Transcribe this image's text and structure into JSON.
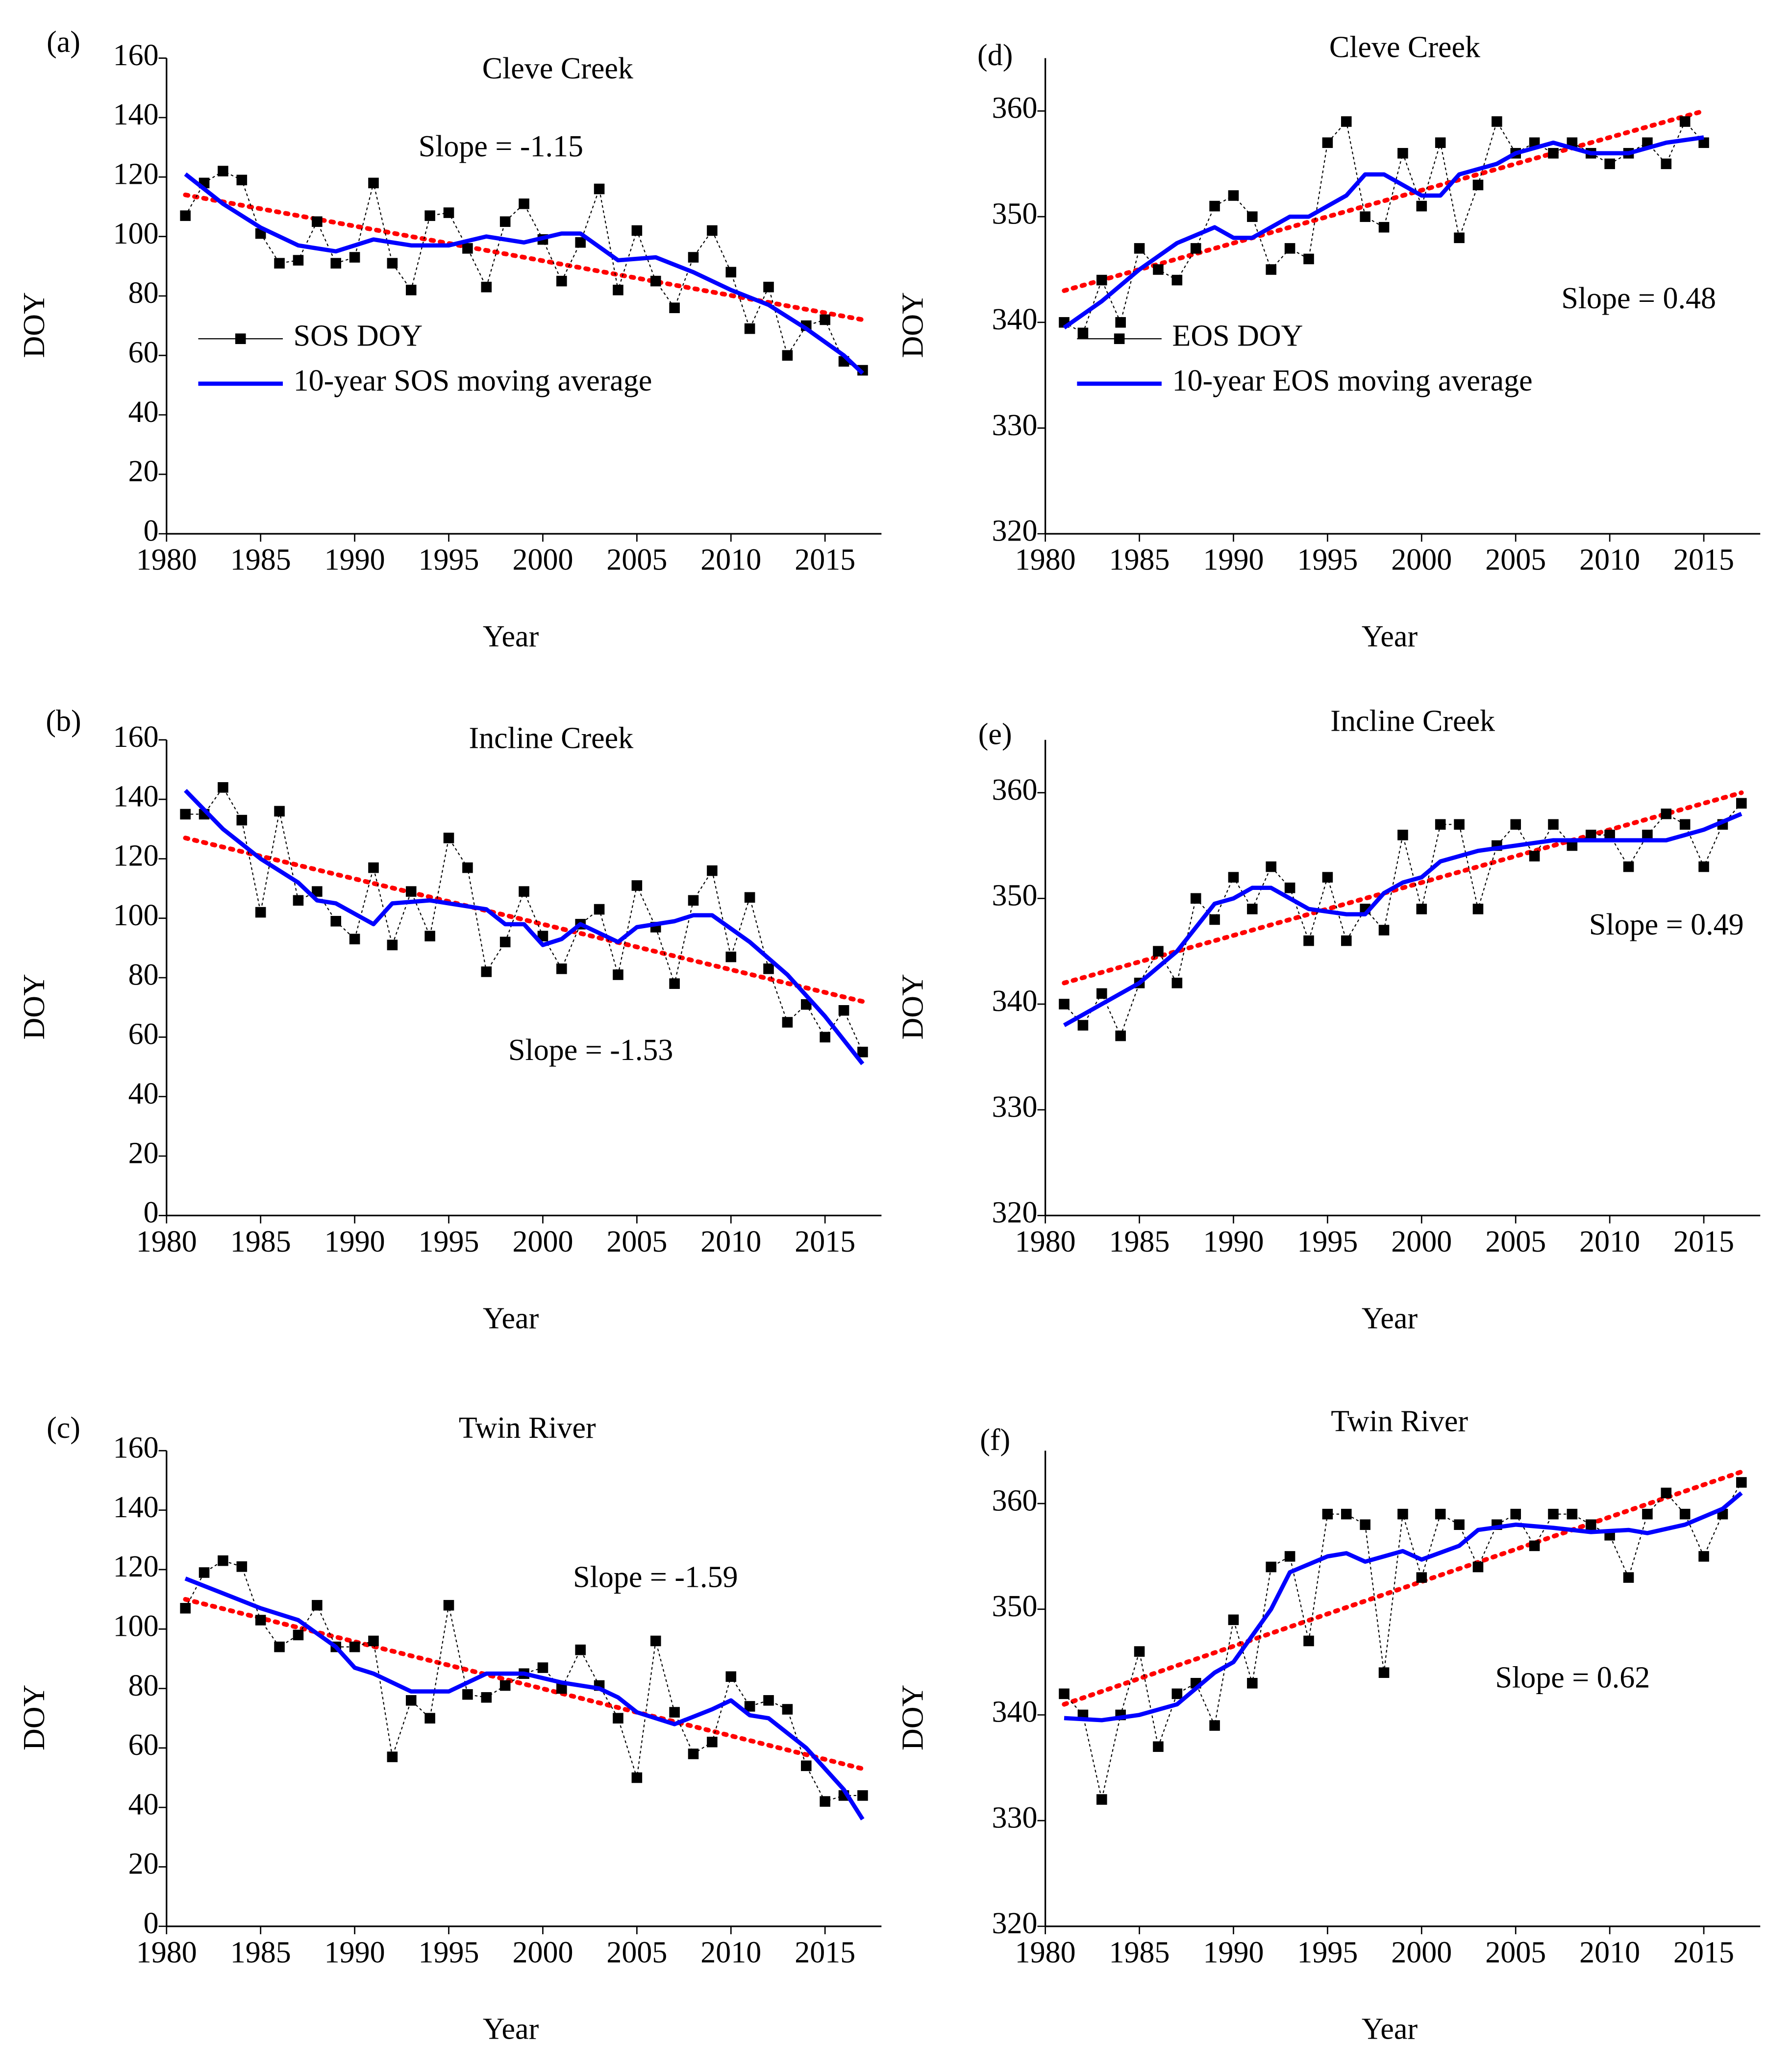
{
  "chart_data": [
    {
      "type": "line",
      "label": "(a)",
      "title": "Cleve Creek",
      "slope_label": "Slope = -1.15",
      "xlabel": "Year",
      "ylabel": "DOY",
      "xlim": [
        1980,
        2018
      ],
      "xticks": [
        1980,
        1985,
        1990,
        1995,
        2000,
        2005,
        2010,
        2015
      ],
      "ylim": [
        0,
        160
      ],
      "yticks": [
        0,
        20,
        40,
        60,
        80,
        100,
        120,
        140,
        160
      ],
      "legend": "left",
      "series": [
        {
          "name": "SOS DOY",
          "color": "#000000",
          "x": [
            1981,
            1982,
            1983,
            1984,
            1985,
            1986,
            1987,
            1988,
            1989,
            1990,
            1991,
            1992,
            1993,
            1994,
            1995,
            1996,
            1997,
            1998,
            1999,
            2000,
            2001,
            2002,
            2003,
            2004,
            2005,
            2006,
            2007,
            2008,
            2009,
            2010,
            2011,
            2012,
            2013,
            2014,
            2015,
            2016,
            2017
          ],
          "values": [
            107,
            118,
            122,
            119,
            101,
            91,
            92,
            105,
            91,
            93,
            118,
            91,
            82,
            107,
            108,
            96,
            83,
            105,
            111,
            99,
            85,
            98,
            116,
            82,
            102,
            85,
            76,
            93,
            102,
            88,
            69,
            83,
            60,
            70,
            72,
            58,
            55
          ]
        },
        {
          "name": "10-year SOS moving average",
          "color": "#0000ff",
          "x": [
            1981,
            1983,
            1985,
            1987,
            1989,
            1991,
            1993,
            1995,
            1997,
            1999,
            2001,
            2002,
            2004,
            2006,
            2008,
            2010,
            2012,
            2014,
            2016,
            2017
          ],
          "values": [
            121,
            111,
            103,
            97,
            95,
            99,
            97,
            97,
            100,
            98,
            101,
            101,
            92,
            93,
            88,
            82,
            77,
            69,
            60,
            54
          ]
        }
      ],
      "trend": {
        "color": "#ff0000",
        "x": [
          1981,
          2017
        ],
        "values": [
          114,
          72
        ]
      }
    },
    {
      "type": "line",
      "label": "(b)",
      "title": "Incline Creek",
      "slope_label": "Slope = -1.53",
      "xlabel": "Year",
      "ylabel": "DOY",
      "xlim": [
        1980,
        2018
      ],
      "xticks": [
        1980,
        1985,
        1990,
        1995,
        2000,
        2005,
        2010,
        2015
      ],
      "ylim": [
        0,
        160
      ],
      "yticks": [
        0,
        20,
        40,
        60,
        80,
        100,
        120,
        140,
        160
      ],
      "series": [
        {
          "color": "#000000",
          "x": [
            1981,
            1982,
            1983,
            1984,
            1985,
            1986,
            1987,
            1988,
            1989,
            1990,
            1991,
            1992,
            1993,
            1994,
            1995,
            1996,
            1997,
            1998,
            1999,
            2000,
            2001,
            2002,
            2003,
            2004,
            2005,
            2006,
            2007,
            2008,
            2009,
            2010,
            2011,
            2012,
            2013,
            2014,
            2015,
            2016,
            2017
          ],
          "values": [
            135,
            135,
            144,
            133,
            102,
            136,
            106,
            109,
            99,
            93,
            117,
            91,
            109,
            94,
            127,
            117,
            82,
            92,
            109,
            94,
            83,
            98,
            103,
            81,
            111,
            97,
            78,
            106,
            116,
            87,
            107,
            83,
            65,
            71,
            60,
            69,
            55
          ]
        },
        {
          "color": "#0000ff",
          "x": [
            1981,
            1983,
            1985,
            1987,
            1988,
            1989,
            1991,
            1992,
            1994,
            1996,
            1997,
            1998,
            1999,
            2000,
            2001,
            2002,
            2004,
            2005,
            2007,
            2008,
            2009,
            2011,
            2013,
            2015,
            2017
          ],
          "values": [
            143,
            130,
            120,
            112,
            106,
            105,
            98,
            105,
            106,
            104,
            103,
            98,
            98,
            91,
            93,
            98,
            92,
            97,
            99,
            101,
            101,
            92,
            81,
            67,
            51
          ]
        }
      ],
      "trend": {
        "color": "#ff0000",
        "x": [
          1981,
          2017
        ],
        "values": [
          127,
          72
        ]
      }
    },
    {
      "type": "line",
      "label": "(c)",
      "title": "Twin River",
      "slope_label": "Slope = -1.59",
      "xlabel": "Year",
      "ylabel": "DOY",
      "xlim": [
        1980,
        2018
      ],
      "xticks": [
        1980,
        1985,
        1990,
        1995,
        2000,
        2005,
        2010,
        2015
      ],
      "ylim": [
        0,
        160
      ],
      "yticks": [
        0,
        20,
        40,
        60,
        80,
        100,
        120,
        140,
        160
      ],
      "series": [
        {
          "color": "#000000",
          "x": [
            1981,
            1982,
            1983,
            1984,
            1985,
            1986,
            1987,
            1988,
            1989,
            1990,
            1991,
            1992,
            1993,
            1994,
            1995,
            1996,
            1997,
            1998,
            1999,
            2000,
            2001,
            2002,
            2003,
            2004,
            2005,
            2006,
            2007,
            2008,
            2009,
            2010,
            2011,
            2012,
            2013,
            2014,
            2015,
            2016,
            2017
          ],
          "values": [
            107,
            119,
            123,
            121,
            103,
            94,
            98,
            108,
            94,
            94,
            96,
            57,
            76,
            70,
            108,
            78,
            77,
            81,
            85,
            87,
            80,
            93,
            81,
            70,
            50,
            96,
            72,
            58,
            62,
            84,
            74,
            76,
            73,
            54,
            42,
            44,
            44
          ]
        },
        {
          "color": "#0000ff",
          "x": [
            1981,
            1983,
            1985,
            1987,
            1989,
            1990,
            1991,
            1993,
            1995,
            1997,
            1999,
            2001,
            2003,
            2004,
            2005,
            2007,
            2009,
            2010,
            2011,
            2012,
            2014,
            2016,
            2017
          ],
          "values": [
            117,
            112,
            107,
            103,
            94,
            87,
            85,
            79,
            79,
            85,
            85,
            82,
            80,
            77,
            72,
            68,
            73,
            76,
            71,
            70,
            60,
            46,
            36
          ]
        }
      ],
      "trend": {
        "color": "#ff0000",
        "x": [
          1981,
          2017
        ],
        "values": [
          110,
          53
        ]
      }
    },
    {
      "type": "line",
      "label": "(d)",
      "title": "Cleve Creek",
      "slope_label": "Slope = 0.48",
      "xlabel": "Year",
      "ylabel": "DOY",
      "xlim": [
        1980,
        2018
      ],
      "xticks": [
        1980,
        1985,
        1990,
        1995,
        2000,
        2005,
        2010,
        2015
      ],
      "ylim": [
        320,
        365
      ],
      "yticks": [
        320,
        330,
        340,
        350,
        360
      ],
      "legend": "left",
      "series": [
        {
          "name": "EOS DOY",
          "color": "#000000",
          "x": [
            1981,
            1982,
            1983,
            1984,
            1985,
            1986,
            1987,
            1988,
            1989,
            1990,
            1991,
            1992,
            1993,
            1994,
            1995,
            1996,
            1997,
            1998,
            1999,
            2000,
            2001,
            2002,
            2003,
            2004,
            2005,
            2006,
            2007,
            2008,
            2009,
            2010,
            2011,
            2012,
            2013,
            2014,
            2015
          ],
          "values": [
            340,
            339,
            344,
            340,
            347,
            345,
            344,
            347,
            351,
            352,
            350,
            345,
            347,
            346,
            357,
            359,
            350,
            349,
            356,
            351,
            357,
            348,
            353,
            359,
            356,
            357,
            356,
            357,
            356,
            355,
            356,
            357,
            355,
            359,
            357
          ]
        },
        {
          "name": "10-year EOS moving average",
          "color": "#0000ff",
          "x": [
            1981,
            1983,
            1985,
            1987,
            1989,
            1990,
            1991,
            1993,
            1994,
            1996,
            1997,
            1998,
            2000,
            2001,
            2002,
            2004,
            2005,
            2007,
            2009,
            2011,
            2013,
            2015
          ],
          "values": [
            339.5,
            342,
            345,
            347.5,
            349,
            348,
            348,
            350,
            350,
            352,
            354,
            354,
            352,
            352,
            354,
            355,
            356,
            357,
            356,
            356,
            357,
            357.5
          ]
        }
      ],
      "trend": {
        "color": "#ff0000",
        "x": [
          1981,
          2015
        ],
        "values": [
          343,
          360
        ]
      }
    },
    {
      "type": "line",
      "label": "(e)",
      "title": "Incline Creek",
      "slope_label": "Slope = 0.49",
      "xlabel": "Year",
      "ylabel": "DOY",
      "xlim": [
        1980,
        2018
      ],
      "xticks": [
        1980,
        1985,
        1990,
        1995,
        2000,
        2005,
        2010,
        2015
      ],
      "ylim": [
        320,
        365
      ],
      "yticks": [
        320,
        330,
        340,
        350,
        360
      ],
      "series": [
        {
          "color": "#000000",
          "x": [
            1981,
            1982,
            1983,
            1984,
            1985,
            1986,
            1987,
            1988,
            1989,
            1990,
            1991,
            1992,
            1993,
            1994,
            1995,
            1996,
            1997,
            1998,
            1999,
            2000,
            2001,
            2002,
            2003,
            2004,
            2005,
            2006,
            2007,
            2008,
            2009,
            2010,
            2011,
            2012,
            2013,
            2014,
            2015,
            2016,
            2017
          ],
          "values": [
            340,
            338,
            341,
            337,
            342,
            345,
            342,
            350,
            348,
            352,
            349,
            353,
            351,
            346,
            352,
            346,
            349,
            347,
            356,
            349,
            357,
            357,
            349,
            355,
            357,
            354,
            357,
            355,
            356,
            356,
            353,
            356,
            358,
            357,
            353,
            357,
            359
          ]
        },
        {
          "color": "#0000ff",
          "x": [
            1981,
            1983,
            1985,
            1987,
            1989,
            1990,
            1991,
            1992,
            1993,
            1994,
            1996,
            1997,
            1998,
            1999,
            2000,
            2001,
            2003,
            2005,
            2007,
            2009,
            2011,
            2013,
            2015,
            2017
          ],
          "values": [
            338,
            340,
            342,
            345,
            349.5,
            350,
            351,
            351,
            350,
            349,
            348.5,
            348.5,
            350.5,
            351.5,
            352,
            353.5,
            354.5,
            355,
            355.5,
            355.5,
            355.5,
            355.5,
            356.5,
            358
          ]
        }
      ],
      "trend": {
        "color": "#ff0000",
        "x": [
          1981,
          2017
        ],
        "values": [
          342,
          360
        ]
      }
    },
    {
      "type": "line",
      "label": "(f)",
      "title": "Twin River",
      "slope_label": "Slope = 0.62",
      "xlabel": "Year",
      "ylabel": "DOY",
      "xlim": [
        1980,
        2018
      ],
      "xticks": [
        1980,
        1985,
        1990,
        1995,
        2000,
        2005,
        2010,
        2015
      ],
      "ylim": [
        320,
        365
      ],
      "yticks": [
        320,
        330,
        340,
        350,
        360
      ],
      "series": [
        {
          "color": "#000000",
          "x": [
            1981,
            1982,
            1983,
            1984,
            1985,
            1986,
            1987,
            1988,
            1989,
            1990,
            1991,
            1992,
            1993,
            1994,
            1995,
            1996,
            1997,
            1998,
            1999,
            2000,
            2001,
            2002,
            2003,
            2004,
            2005,
            2006,
            2007,
            2008,
            2009,
            2010,
            2011,
            2012,
            2013,
            2014,
            2015,
            2016,
            2017
          ],
          "values": [
            342,
            340,
            332,
            340,
            346,
            337,
            342,
            343,
            339,
            349,
            343,
            354,
            355,
            347,
            359,
            359,
            358,
            344,
            359,
            353,
            359,
            358,
            354,
            358,
            359,
            356,
            359,
            359,
            358,
            357,
            353,
            359,
            361,
            359,
            355,
            359,
            362
          ]
        },
        {
          "color": "#0000ff",
          "x": [
            1981,
            1983,
            1985,
            1987,
            1989,
            1990,
            1992,
            1993,
            1995,
            1996,
            1997,
            1998,
            1999,
            2000,
            2002,
            2003,
            2005,
            2007,
            2009,
            2011,
            2012,
            2014,
            2016,
            2017
          ],
          "values": [
            339.7,
            339.5,
            340,
            341,
            344,
            345,
            350,
            353.5,
            355,
            355.3,
            354.5,
            355,
            355.5,
            354.7,
            356,
            357.5,
            358,
            357.7,
            357.3,
            357.5,
            357.2,
            358,
            359.5,
            361
          ]
        }
      ],
      "trend": {
        "color": "#ff0000",
        "x": [
          1981,
          2017
        ],
        "values": [
          341,
          363
        ]
      }
    }
  ]
}
